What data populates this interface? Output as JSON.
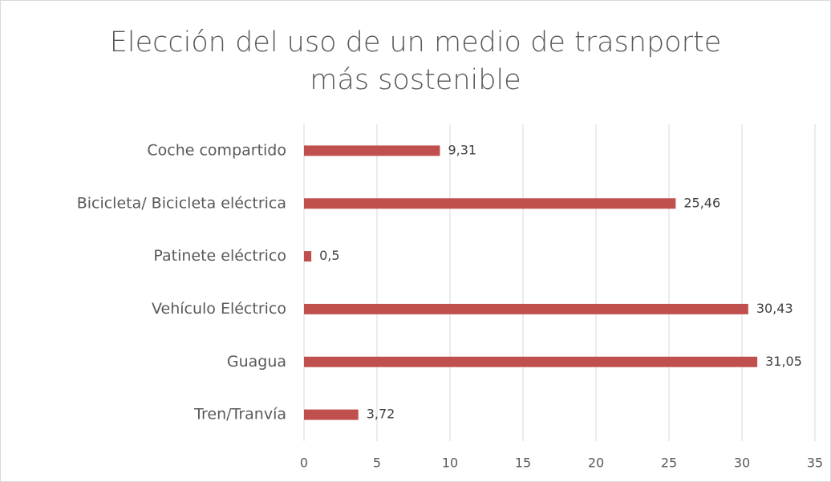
{
  "chart_data": {
    "type": "bar",
    "orientation": "horizontal",
    "title": "Elección del uso de un medio de trasnporte más sostenible",
    "categories": [
      "Coche compartido",
      "Bicicleta/ Bicicleta eléctrica",
      "Patinete eléctrico",
      "Vehículo Eléctrico",
      "Guagua",
      "Tren/Tranvía"
    ],
    "values": [
      9.31,
      25.46,
      0.5,
      30.43,
      31.05,
      3.72
    ],
    "value_labels": [
      "9,31",
      "25,46",
      "0,5",
      "30,43",
      "31,05",
      "3,72"
    ],
    "color": "#c0504d",
    "xlim": [
      0,
      35
    ],
    "xticks": [
      0,
      5,
      10,
      15,
      20,
      25,
      30,
      35
    ],
    "grid": true
  }
}
